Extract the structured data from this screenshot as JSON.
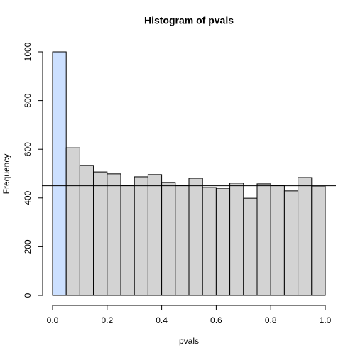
{
  "chart_data": {
    "type": "histogram",
    "title": "Histogram of pvals",
    "x_label": "pvals",
    "y_label": "Frequency",
    "bins": [
      0,
      0.05,
      0.1,
      0.15,
      0.2,
      0.25,
      0.3,
      0.35,
      0.4,
      0.45,
      0.5,
      0.55,
      0.6,
      0.65,
      0.7,
      0.75,
      0.8,
      0.85,
      0.9,
      0.95,
      1
    ],
    "counts": [
      1000,
      606,
      534,
      507,
      499,
      452,
      487,
      496,
      464,
      452,
      481,
      443,
      440,
      461,
      399,
      458,
      452,
      429,
      484,
      449
    ],
    "colors": [
      "#cce0ff",
      "#d3d3d3",
      "#d3d3d3",
      "#d3d3d3",
      "#d3d3d3",
      "#d3d3d3",
      "#d3d3d3",
      "#d3d3d3",
      "#d3d3d3",
      "#d3d3d3",
      "#d3d3d3",
      "#d3d3d3",
      "#d3d3d3",
      "#d3d3d3",
      "#d3d3d3",
      "#d3d3d3",
      "#d3d3d3",
      "#d3d3d3",
      "#d3d3d3",
      "#d3d3d3"
    ],
    "hline": 450,
    "xlim": [
      0,
      1
    ],
    "ylim": [
      0,
      1000
    ],
    "xticks": [
      {
        "value": 0,
        "label": "0.0"
      },
      {
        "value": 0.2,
        "label": "0.2"
      },
      {
        "value": 0.4,
        "label": "0.4"
      },
      {
        "value": 0.6,
        "label": "0.6"
      },
      {
        "value": 0.8,
        "label": "0.8"
      },
      {
        "value": 1,
        "label": "1.0"
      }
    ],
    "yticks": [
      0,
      200,
      400,
      600,
      800,
      1000
    ]
  }
}
